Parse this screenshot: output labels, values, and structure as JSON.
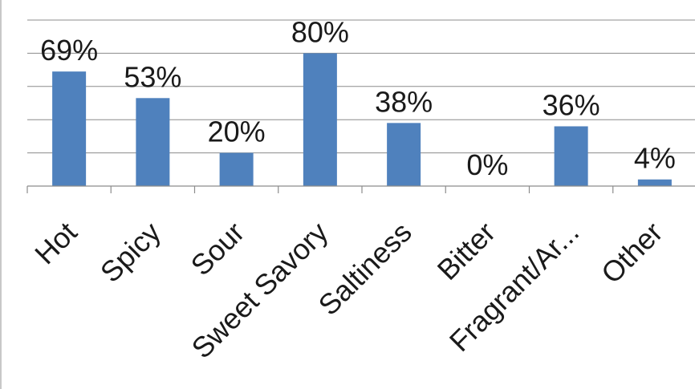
{
  "chart_data": {
    "type": "bar",
    "categories": [
      "Hot",
      "Spicy",
      "Sour",
      "Sweet Savory",
      "Saltiness",
      "Bitter",
      "Fragrant/Ar...",
      "Other"
    ],
    "values": [
      69,
      53,
      20,
      80,
      38,
      0,
      36,
      4
    ],
    "data_labels": [
      "69%",
      "53%",
      "20%",
      "80%",
      "38%",
      "0%",
      "36%",
      "4%"
    ],
    "title": "",
    "xlabel": "",
    "ylabel": "",
    "ylim": [
      0,
      100
    ],
    "y_tick_step": 20,
    "y_tick_labels_shown": false,
    "grid": true,
    "legend": "none",
    "bar_color": "#4f81bd"
  }
}
